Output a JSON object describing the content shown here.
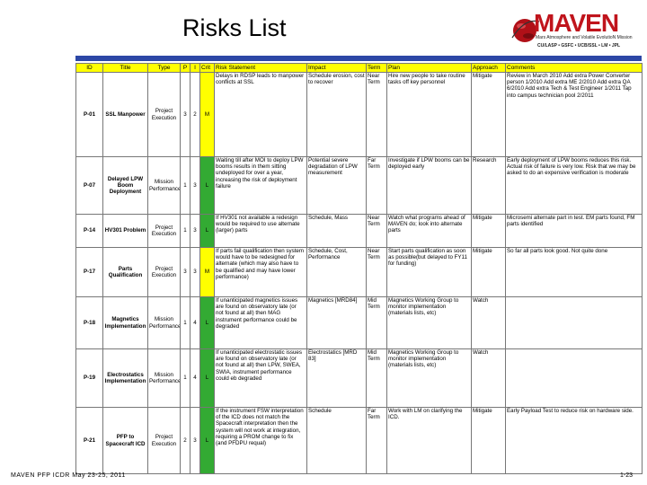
{
  "slide": {
    "title": "Risks List",
    "footer_left": "MAVEN PFP ICDR May 23-25, 2011",
    "page_number": "1-23"
  },
  "logo": {
    "word": "MAVEN",
    "subtitle": "Mars Atmosphere and Volatile EvolutioN Mission",
    "partners": "CU/LASP • GSFC • UCB/SSL • LM • JPL",
    "planet_color": "#b01018"
  },
  "colors": {
    "header_fill": "#ffff00",
    "bar_blue": "#2c47a6",
    "crit_medium": "#ffff00",
    "crit_low": "#33aa33"
  },
  "table": {
    "headers": [
      "ID",
      "Title",
      "Type",
      "P",
      "I",
      "Crit",
      "Risk Statement",
      "Impact",
      "Term",
      "Plan",
      "Approach",
      "Comments"
    ],
    "rows": [
      {
        "id": "P-01",
        "title": "SSL Manpower",
        "type": "Project Execution",
        "p": "3",
        "i": "2",
        "crit": "M",
        "crit_color": "#ffff00",
        "risk": "Delays in RDSP leads to manpower conflicts at SSL",
        "impact": "Schedule erosion, cost to recover",
        "term": "Near Term",
        "plan": "Hire new people to take routine tasks off key personnel",
        "approach": "Mitigate",
        "comments": "Review in March 2010 Add extra Power Converter person 1/2010 Add extra ME 2/2010 Add extra QA 6/2010 Add extra Tech & Test Engineer 1/2011 Tap into campus technician pool 2/2011"
      },
      {
        "id": "P-07",
        "title": "Delayed LPW Boom Deployment",
        "type": "Mission Performance",
        "p": "1",
        "i": "3",
        "crit": "L",
        "crit_color": "#33aa33",
        "risk": "Waiting till after MOI to deploy LPW booms results in them sitting undeployed for over a year, increasing the risk of deployment failure",
        "impact": "Potential severe degradation of LPW measurement",
        "term": "Far Term",
        "plan": "Investigate if LPW booms can be deployed early",
        "approach": "Research",
        "comments": "Early deployment of LPW booms reduces this risk. Actual risk of failure is very low. Risk that we may be asked to do an expensive verification is moderate"
      },
      {
        "id": "P-14",
        "title": "HV301 Problem",
        "type": "Project Execution",
        "p": "1",
        "i": "3",
        "crit": "L",
        "crit_color": "#33aa33",
        "risk": "If HV301 not available a redesign would be required to use alternate (larger) parts",
        "impact": "Schedule, Mass",
        "term": "Near Term",
        "plan": "Watch what programs ahead of MAVEN do; look into alternate parts",
        "approach": "Mitigate",
        "comments": "Microsemi alternate part in test. EM parts found, FM parts identified"
      },
      {
        "id": "P-17",
        "title": "Parts Qualification",
        "type": "Project Execution",
        "p": "3",
        "i": "3",
        "crit": "M",
        "crit_color": "#ffff00",
        "risk": "If parts fail qualification then system would have to be redesigned for alternate (which may also have to be qualified and may have lower performance)",
        "impact": "Schedule, Cost, Performance",
        "term": "Near Term",
        "plan": "Start parts qualification as soon as possible(but delayed to FY11 for funding)",
        "approach": "Mitigate",
        "comments": "So far all parts look good. Not quite done"
      },
      {
        "id": "P-18",
        "title": "Magnetics Implementation",
        "type": "Mission Performance",
        "p": "1",
        "i": "4",
        "crit": "L",
        "crit_color": "#33aa33",
        "risk": "If unanticipated magnetics issues are found on observatory late (or not found at all) then MAG instrument performance could be degraded",
        "impact": "Magnetics [MRD84]",
        "term": "Mid Term",
        "plan": "Magnetics Working Group to monitor implementation (materials lists, etc)",
        "approach": "Watch",
        "comments": ""
      },
      {
        "id": "P-19",
        "title": "Electrostatics Implementation",
        "type": "Mission Performance",
        "p": "1",
        "i": "4",
        "crit": "L",
        "crit_color": "#33aa33",
        "risk": "If unanticipated electrostatic issues are found on observatory late (or not found at all) then LPW, SWEA, SWIA, instrument performance could eb degraded",
        "impact": "Electrostatics [MRD 83]",
        "term": "Mid Term",
        "plan": "Magnetics Working Group to monitor implementation (materials lists, etc)",
        "approach": "Watch",
        "comments": ""
      },
      {
        "id": "P-21",
        "title": "PFP to Spacecraft ICD",
        "type": "Project Execution",
        "p": "2",
        "i": "3",
        "crit": "L",
        "crit_color": "#33aa33",
        "risk": "If the instrument FSW interpretation of the ICD does not match the Spacecraft interpretation then the system will not work at integration, requiring a PROM change to fix (and PFDPU requal)",
        "impact": "Schedule",
        "term": "Far Term",
        "plan": "Work with LM on clarifying the ICD.",
        "approach": "Mitigate",
        "comments": "Early Payload Test to reduce risk on hardware side."
      }
    ]
  }
}
